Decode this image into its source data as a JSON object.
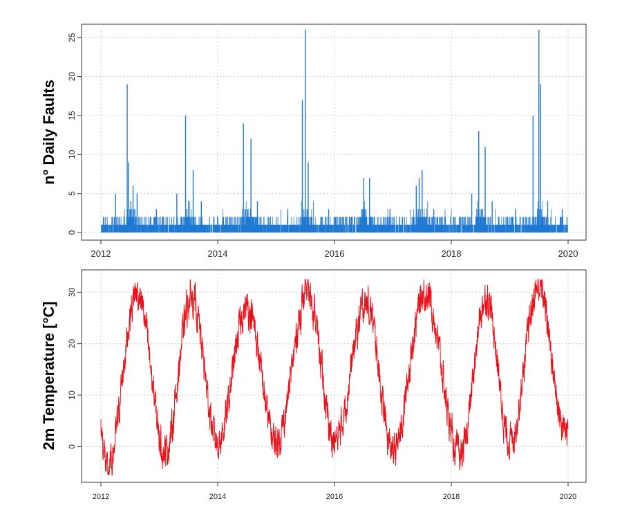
{
  "colors": {
    "faults": "#1f78d1",
    "temperature": "#e8141c",
    "grid": "#cccccc",
    "axis": "#333333"
  },
  "chart_data": [
    {
      "type": "line",
      "title": "",
      "xlabel": "",
      "ylabel": "n° Daily Faults",
      "xlim": [
        2012,
        2020
      ],
      "ylim": [
        0,
        26
      ],
      "x_ticks": [
        "2012",
        "2014",
        "2016",
        "2018",
        "2020"
      ],
      "y_ticks": [
        "0",
        "5",
        "10",
        "15",
        "20",
        "25"
      ],
      "grid": true,
      "series": [
        {
          "color": "#1f78d1",
          "baseline": "daily counts mostly 0–3 faults",
          "peaks": [
            {
              "x": 2012.05,
              "y": 2
            },
            {
              "x": 2012.25,
              "y": 5
            },
            {
              "x": 2012.45,
              "y": 19
            },
            {
              "x": 2012.47,
              "y": 9
            },
            {
              "x": 2012.55,
              "y": 6
            },
            {
              "x": 2012.62,
              "y": 5
            },
            {
              "x": 2012.95,
              "y": 3
            },
            {
              "x": 2013.3,
              "y": 5
            },
            {
              "x": 2013.45,
              "y": 15
            },
            {
              "x": 2013.58,
              "y": 8
            },
            {
              "x": 2013.72,
              "y": 4
            },
            {
              "x": 2014.1,
              "y": 2
            },
            {
              "x": 2014.44,
              "y": 14
            },
            {
              "x": 2014.57,
              "y": 12
            },
            {
              "x": 2014.68,
              "y": 4
            },
            {
              "x": 2015.2,
              "y": 3
            },
            {
              "x": 2015.45,
              "y": 17
            },
            {
              "x": 2015.5,
              "y": 26
            },
            {
              "x": 2015.55,
              "y": 9
            },
            {
              "x": 2015.9,
              "y": 3
            },
            {
              "x": 2016.5,
              "y": 7
            },
            {
              "x": 2016.6,
              "y": 7
            },
            {
              "x": 2016.95,
              "y": 3
            },
            {
              "x": 2017.4,
              "y": 6
            },
            {
              "x": 2017.45,
              "y": 7
            },
            {
              "x": 2017.5,
              "y": 8
            },
            {
              "x": 2017.7,
              "y": 3
            },
            {
              "x": 2018.35,
              "y": 5
            },
            {
              "x": 2018.47,
              "y": 13
            },
            {
              "x": 2018.58,
              "y": 11
            },
            {
              "x": 2018.7,
              "y": 4
            },
            {
              "x": 2019.1,
              "y": 3
            },
            {
              "x": 2019.4,
              "y": 15
            },
            {
              "x": 2019.5,
              "y": 26
            },
            {
              "x": 2019.53,
              "y": 19
            },
            {
              "x": 2019.65,
              "y": 4
            },
            {
              "x": 2019.9,
              "y": 3
            }
          ]
        }
      ]
    },
    {
      "type": "line",
      "title": "",
      "xlabel": "",
      "ylabel": "2m Temperature [°C]",
      "xlim": [
        2012,
        2020
      ],
      "ylim": [
        -6,
        33
      ],
      "x_ticks": [
        "2012",
        "2014",
        "2016",
        "2018",
        "2020"
      ],
      "y_ticks": [
        "0",
        "10",
        "20",
        "30"
      ],
      "grid": true,
      "series": [
        {
          "color": "#e8141c",
          "pattern": "seasonal cycle with daily noise",
          "extremes": [
            {
              "x": 2012.1,
              "y": -5
            },
            {
              "x": 2012.62,
              "y": 30
            },
            {
              "x": 2013.1,
              "y": -1
            },
            {
              "x": 2013.55,
              "y": 29
            },
            {
              "x": 2014.0,
              "y": 1
            },
            {
              "x": 2014.5,
              "y": 27
            },
            {
              "x": 2015.0,
              "y": 1
            },
            {
              "x": 2015.55,
              "y": 30
            },
            {
              "x": 2016.0,
              "y": 1
            },
            {
              "x": 2016.55,
              "y": 28
            },
            {
              "x": 2017.0,
              "y": -1
            },
            {
              "x": 2017.55,
              "y": 30
            },
            {
              "x": 2018.15,
              "y": -2
            },
            {
              "x": 2018.6,
              "y": 29
            },
            {
              "x": 2019.0,
              "y": 1
            },
            {
              "x": 2019.5,
              "y": 31
            },
            {
              "x": 2019.95,
              "y": 3
            }
          ]
        }
      ]
    }
  ]
}
